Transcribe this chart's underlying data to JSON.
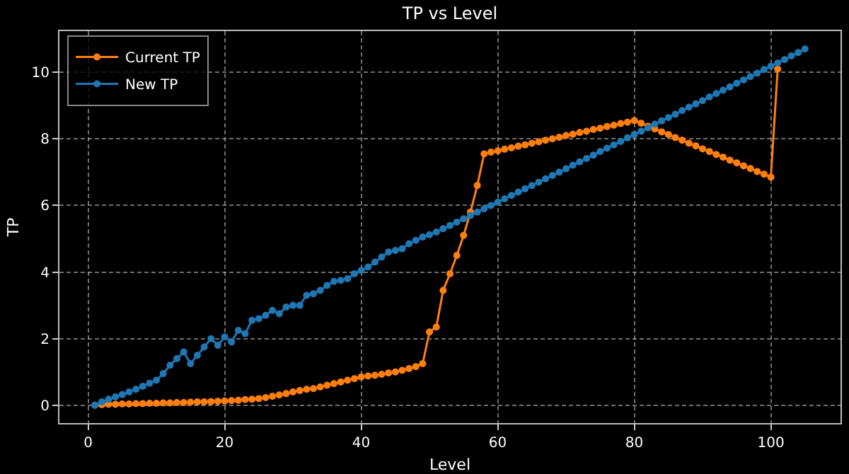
{
  "chart_data": {
    "type": "line",
    "title": "TP vs Level",
    "xlabel": "Level",
    "ylabel": "TP",
    "xlim": [
      -4.2,
      110.2
    ],
    "ylim": [
      -0.535,
      11.235
    ],
    "xticks": [
      0,
      20,
      40,
      60,
      80,
      100
    ],
    "yticks": [
      0,
      2,
      4,
      6,
      8,
      10
    ],
    "grid": true,
    "legend": "top left",
    "marker": "circle",
    "line_style": "solid",
    "series": [
      {
        "name": "Current TP",
        "color": "#ff7f0e",
        "x": [
          1,
          2,
          3,
          4,
          5,
          6,
          7,
          8,
          9,
          10,
          11,
          12,
          13,
          14,
          15,
          16,
          17,
          18,
          19,
          20,
          21,
          22,
          23,
          24,
          25,
          26,
          27,
          28,
          29,
          30,
          31,
          32,
          33,
          34,
          35,
          36,
          37,
          38,
          39,
          40,
          41,
          42,
          43,
          44,
          45,
          46,
          47,
          48,
          49,
          50,
          51,
          52,
          53,
          54,
          55,
          56,
          57,
          58,
          59,
          60,
          61,
          62,
          63,
          64,
          65,
          66,
          67,
          68,
          69,
          70,
          71,
          72,
          73,
          74,
          75,
          76,
          77,
          78,
          79,
          80,
          81,
          82,
          83,
          84,
          85,
          86,
          87,
          88,
          89,
          90,
          91,
          92,
          93,
          94,
          95,
          96,
          97,
          98,
          99,
          100,
          101
        ],
        "values": [
          0,
          0.02,
          0.03,
          0.03,
          0.04,
          0.04,
          0.05,
          0.05,
          0.06,
          0.06,
          0.07,
          0.07,
          0.08,
          0.08,
          0.09,
          0.1,
          0.1,
          0.11,
          0.12,
          0.13,
          0.14,
          0.15,
          0.17,
          0.18,
          0.2,
          0.23,
          0.27,
          0.31,
          0.35,
          0.4,
          0.44,
          0.48,
          0.5,
          0.55,
          0.6,
          0.65,
          0.7,
          0.75,
          0.8,
          0.85,
          0.88,
          0.9,
          0.93,
          0.97,
          1.0,
          1.05,
          1.1,
          1.16,
          1.25,
          2.2,
          2.35,
          3.45,
          3.95,
          4.5,
          5.1,
          5.8,
          6.6,
          7.55,
          7.6,
          7.64,
          7.69,
          7.73,
          7.78,
          7.82,
          7.87,
          7.91,
          7.96,
          8.0,
          8.05,
          8.1,
          8.14,
          8.19,
          8.23,
          8.28,
          8.32,
          8.37,
          8.41,
          8.46,
          8.5,
          8.55,
          8.47,
          8.38,
          8.3,
          8.21,
          8.13,
          8.04,
          7.96,
          7.87,
          7.79,
          7.7,
          7.62,
          7.53,
          7.45,
          7.36,
          7.28,
          7.19,
          7.11,
          7.02,
          6.94,
          6.85,
          10.1
        ]
      },
      {
        "name": "New TP",
        "color": "#1f77b4",
        "x": [
          1,
          2,
          3,
          4,
          5,
          6,
          7,
          8,
          9,
          10,
          11,
          12,
          13,
          14,
          15,
          16,
          17,
          18,
          19,
          20,
          21,
          22,
          23,
          24,
          25,
          26,
          27,
          28,
          29,
          30,
          31,
          32,
          33,
          34,
          35,
          36,
          37,
          38,
          39,
          40,
          41,
          42,
          43,
          44,
          45,
          46,
          47,
          48,
          49,
          50,
          51,
          52,
          53,
          54,
          55,
          56,
          57,
          58,
          59,
          60,
          61,
          62,
          63,
          64,
          65,
          66,
          67,
          68,
          69,
          70,
          71,
          72,
          73,
          74,
          75,
          76,
          77,
          78,
          79,
          80,
          81,
          82,
          83,
          84,
          85,
          86,
          87,
          88,
          89,
          90,
          91,
          92,
          93,
          94,
          95,
          96,
          97,
          98,
          99,
          100,
          101,
          102,
          103,
          104,
          105
        ],
        "values": [
          0,
          0.1,
          0.18,
          0.25,
          0.32,
          0.4,
          0.48,
          0.57,
          0.66,
          0.75,
          0.95,
          1.2,
          1.4,
          1.6,
          1.25,
          1.5,
          1.75,
          2.0,
          1.8,
          2.05,
          1.9,
          2.25,
          2.15,
          2.55,
          2.6,
          2.7,
          2.85,
          2.75,
          2.95,
          3.0,
          3.0,
          3.3,
          3.35,
          3.45,
          3.6,
          3.72,
          3.75,
          3.8,
          3.95,
          4.05,
          4.15,
          4.3,
          4.45,
          4.6,
          4.65,
          4.7,
          4.85,
          4.95,
          5.05,
          5.12,
          5.2,
          5.3,
          5.4,
          5.5,
          5.6,
          5.7,
          5.8,
          5.9,
          6.0,
          6.1,
          6.2,
          6.3,
          6.4,
          6.5,
          6.6,
          6.7,
          6.8,
          6.9,
          7.0,
          7.1,
          7.21,
          7.31,
          7.41,
          7.51,
          7.62,
          7.72,
          7.82,
          7.92,
          8.03,
          8.13,
          8.23,
          8.33,
          8.44,
          8.54,
          8.64,
          8.74,
          8.85,
          8.95,
          9.05,
          9.15,
          9.26,
          9.36,
          9.46,
          9.56,
          9.67,
          9.77,
          9.87,
          9.97,
          10.08,
          10.18,
          10.28,
          10.38,
          10.49,
          10.59,
          10.7
        ]
      }
    ]
  }
}
